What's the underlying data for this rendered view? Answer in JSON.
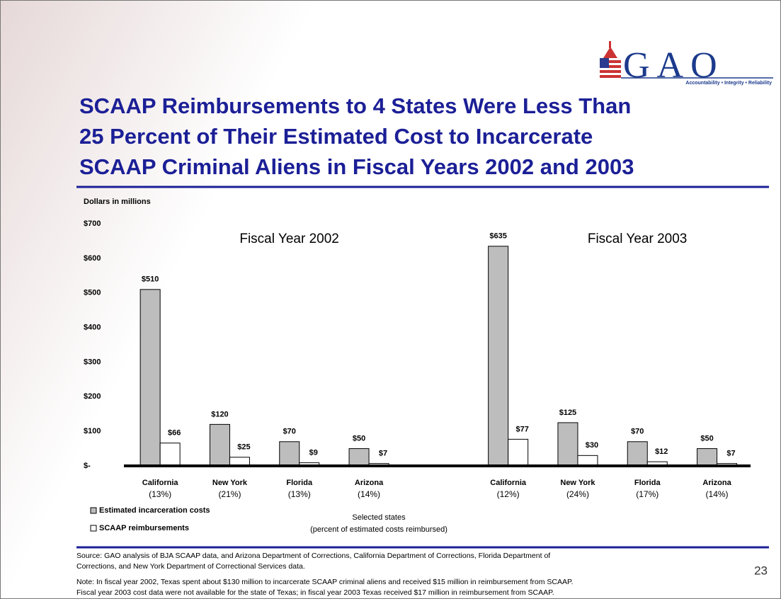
{
  "header": {
    "logo": "GAO",
    "logo_tagline": "Accountability • Integrity • Reliability",
    "title_lines": [
      "SCAAP Reimbursements to 4 States Were Less Than",
      "25 Percent of Their Estimated Cost to Incarcerate",
      "SCAAP Criminal Aliens in Fiscal Years 2002 and 2003"
    ]
  },
  "chart_data": {
    "type": "bar",
    "y_label": "Dollars in millions",
    "group_titles": [
      "Fiscal Year 2002",
      "Fiscal Year 2003"
    ],
    "categories": [
      "California",
      "New York",
      "Florida",
      "Arizona",
      "California",
      "New York",
      "Florida",
      "Arizona"
    ],
    "percent_labels": [
      "(13%)",
      "(21%)",
      "(13%)",
      "(14%)",
      "(12%)",
      "(24%)",
      "(17%)",
      "(14%)"
    ],
    "series": [
      {
        "name": "Estimated incarceration costs",
        "color": "#bdbdbd",
        "values": [
          510,
          120,
          70,
          50,
          635,
          125,
          70,
          50
        ],
        "value_labels": [
          "$510",
          "$120",
          "$70",
          "$50",
          "$635",
          "$125",
          "$70",
          "$50"
        ]
      },
      {
        "name": "SCAAP reimbursements",
        "color": "#ffffff",
        "values": [
          66,
          25,
          9,
          7,
          77,
          30,
          12,
          7
        ],
        "value_labels": [
          "$66",
          "$25",
          "$9",
          "$7",
          "$77",
          "$30",
          "$12",
          "$7"
        ]
      }
    ],
    "ylim": [
      0,
      700
    ],
    "yticks": [
      {
        "value": 0,
        "label": "$-"
      },
      {
        "value": 100,
        "label": "$100"
      },
      {
        "value": 200,
        "label": "$200"
      },
      {
        "value": 300,
        "label": "$300"
      },
      {
        "value": 400,
        "label": "$400"
      },
      {
        "value": 500,
        "label": "$500"
      },
      {
        "value": 600,
        "label": "$600"
      },
      {
        "value": 700,
        "label": "$700"
      }
    ],
    "x_label_lines": [
      "Selected states",
      "(percent of estimated costs reimbursed)"
    ]
  },
  "footer": {
    "source_lines": [
      "Source: GAO analysis of BJA SCAAP data, and Arizona Department of Corrections, California Department of Corrections, Florida Department of",
      "Corrections, and New York Department of Correctional Services data."
    ],
    "note_lines": [
      "Note: In fiscal year 2002, Texas spent about $130 million to incarcerate SCAAP criminal aliens and received $15 million in reimbursement from SCAAP.",
      "Fiscal year 2003 cost data were not available for the state of Texas; in fiscal year 2003 Texas received $17 million in reimbursement from SCAAP."
    ],
    "page_number": "23"
  }
}
